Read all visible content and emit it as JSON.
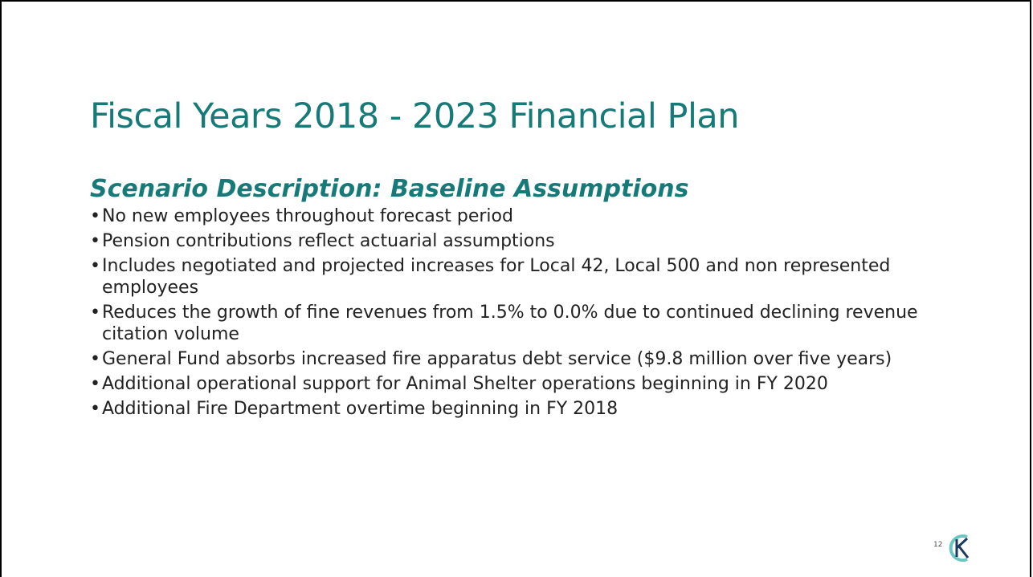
{
  "title": "Fiscal Years 2018 - 2023 Financial Plan",
  "subtitle": "Scenario Description: Baseline Assumptions",
  "bullets": [
    "No new employees throughout forecast period",
    "Pension contributions reflect actuarial assumptions",
    "Includes negotiated and projected increases for Local 42, Local 500 and non represented employees",
    "Reduces the growth of fine revenues from 1.5%  to 0.0% due to continued declining revenue citation volume",
    "General Fund absorbs increased fire apparatus debt service ($9.8 million over five years)",
    "Additional operational support for Animal Shelter operations beginning in FY 2020",
    "Additional Fire Department overtime beginning in FY 2018"
  ],
  "page_number": "12"
}
